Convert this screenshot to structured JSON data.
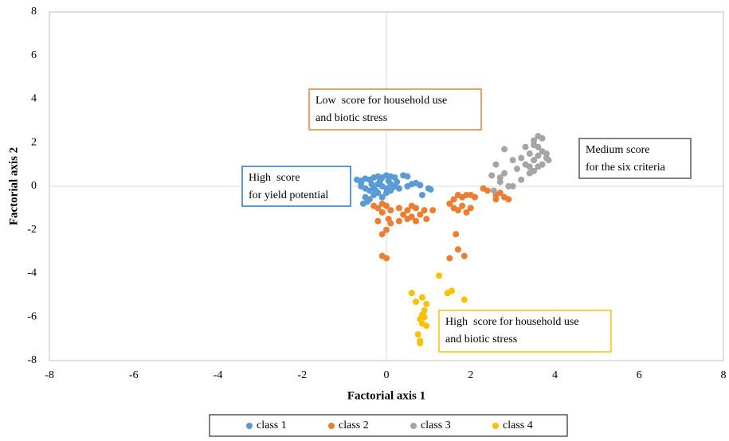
{
  "chart_data": {
    "type": "scatter",
    "xlabel": "Factorial axis 1",
    "ylabel": "Factorial axis 2",
    "xlim": [
      -8,
      8
    ],
    "ylim": [
      -8,
      8
    ],
    "xticks": [
      -8,
      -6,
      -4,
      -2,
      0,
      2,
      4,
      6,
      8
    ],
    "yticks": [
      -8,
      -6,
      -4,
      -2,
      0,
      2,
      4,
      6,
      8
    ],
    "legend": "bottom",
    "series": [
      {
        "name": "class 1",
        "color": "#5b9bd5",
        "x": [
          -0.7,
          -0.6,
          -0.5,
          -0.4,
          -0.3,
          -0.2,
          -0.1,
          0,
          0.1,
          0.2,
          -0.6,
          -0.5,
          -0.4,
          -0.3,
          -0.2,
          -0.1,
          0,
          0.1,
          0.2,
          -0.5,
          -0.4,
          -0.3,
          -0.2,
          -0.1,
          0,
          0.1,
          -0.55,
          -0.45,
          -0.6,
          -0.35,
          -0.15,
          0.05,
          0.15,
          -0.25,
          0.25,
          0.4,
          0.5,
          0.6,
          0.7,
          0.8,
          1.0,
          1.05,
          0.85,
          0.5,
          0.3
        ],
        "y": [
          0.3,
          0.25,
          0.35,
          0.3,
          0.4,
          0.45,
          0.4,
          0.5,
          0.45,
          0.4,
          0,
          -0.1,
          -0.2,
          -0.1,
          0.1,
          0,
          -0.1,
          0.1,
          0,
          -0.5,
          -0.6,
          -0.4,
          -0.3,
          -0.5,
          -0.3,
          -0.2,
          -0.8,
          -0.7,
          0.15,
          0.1,
          0.25,
          0.25,
          -0.05,
          -0.2,
          0.2,
          0.5,
          0.45,
          0.1,
          0.15,
          0.05,
          -0.1,
          -0.15,
          -0.4,
          0,
          -0.1
        ]
      },
      {
        "name": "class 2",
        "color": "#ed7d31",
        "x": [
          -0.3,
          -0.2,
          -0.1,
          0,
          0.1,
          -0.1,
          0.05,
          -0.2,
          0.1,
          0,
          -0.1,
          -0.1,
          0,
          0.3,
          0.4,
          0.5,
          0.6,
          0.7,
          0.6,
          0.8,
          0.9,
          0.95,
          1.1,
          0.7,
          0.5,
          0.3,
          1.5,
          1.6,
          1.7,
          1.6,
          1.7,
          1.8,
          1.9,
          2.0,
          1.8,
          1.9,
          2.0,
          2.1,
          2.3,
          2.4,
          2.6,
          2.7,
          2.8,
          2.9,
          2.6,
          1.65,
          1.7,
          1.5,
          1.85
        ],
        "y": [
          -0.9,
          -1.0,
          -0.8,
          -0.9,
          -1.1,
          -1.2,
          -1.5,
          -1.6,
          -1.7,
          -2.0,
          -2.2,
          -3.2,
          -3.3,
          -1.0,
          -1.3,
          -1.1,
          -0.9,
          -1.0,
          -1.4,
          -1.3,
          -1.1,
          -1.5,
          -1.1,
          -1.6,
          -1.5,
          -1.6,
          -0.8,
          -0.6,
          -0.4,
          -1.0,
          -1.1,
          -0.9,
          -1.2,
          -1.0,
          -0.5,
          -0.4,
          -0.4,
          -0.5,
          -0.1,
          -0.2,
          -0.4,
          -0.3,
          -0.5,
          -0.6,
          -0.6,
          -2.2,
          -2.9,
          -3.3,
          -3.2
        ]
      },
      {
        "name": "class 3",
        "color": "#a5a5a5",
        "x": [
          2.6,
          2.5,
          2.7,
          2.8,
          2.9,
          3.0,
          2.8,
          3.0,
          3.1,
          3.2,
          3.3,
          3.4,
          3.5,
          3.6,
          3.5,
          3.7,
          3.6,
          3.7,
          3.8,
          3.85,
          3.4,
          3.5,
          3.6,
          3.7,
          3.3,
          3.5,
          3.8,
          3.6,
          3.4,
          3.2,
          2.7,
          2.55
        ],
        "y": [
          1.0,
          0.5,
          0.2,
          0.6,
          0,
          0,
          1.7,
          1.2,
          0.8,
          1.3,
          1.8,
          1.5,
          1.2,
          2.3,
          2.1,
          2.2,
          1.8,
          1.6,
          1.3,
          1.2,
          0.9,
          0.7,
          0.9,
          1.0,
          1.0,
          1.9,
          1.5,
          1.4,
          0.6,
          0.3,
          0.4,
          -0.2
        ]
      },
      {
        "name": "class 4",
        "color": "#ffc000",
        "x": [
          0.6,
          0.7,
          0.85,
          0.95,
          0.9,
          0.85,
          0.8,
          0.85,
          0.95,
          0.75,
          0.8,
          0.8,
          1.25,
          1.45,
          1.55,
          1.85,
          0.9
        ],
        "y": [
          -4.9,
          -5.3,
          -5.1,
          -5.4,
          -5.7,
          -5.9,
          -6.1,
          -6.3,
          -6.4,
          -6.8,
          -7.1,
          -7.2,
          -4.1,
          -4.9,
          -4.8,
          -5.2,
          -6.0
        ]
      }
    ],
    "annotations": [
      {
        "lines": [
          "Low  score for household use",
          "and biotic stress"
        ],
        "color": "#ed7d31"
      },
      {
        "lines": [
          "High  score",
          "for yield potential"
        ],
        "color": "#2e75b6"
      },
      {
        "lines": [
          "Medium score",
          "for the six criteria"
        ],
        "color": "#595959"
      },
      {
        "lines": [
          "High  score for household use",
          "and biotic stress"
        ],
        "color": "#ffc000"
      }
    ]
  }
}
